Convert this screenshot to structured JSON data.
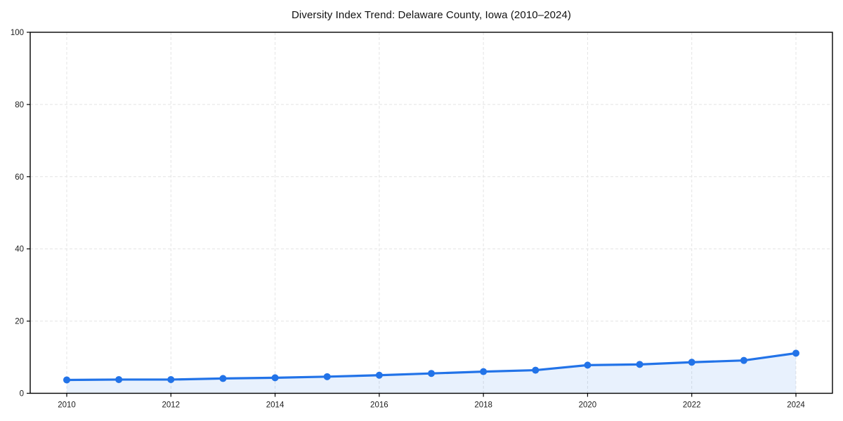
{
  "chart_data": {
    "type": "line",
    "title": "Diversity Index Trend: Delaware County, Iowa (2010–2024)",
    "xlabel": "",
    "ylabel": "",
    "x": [
      2010,
      2011,
      2012,
      2013,
      2014,
      2015,
      2016,
      2017,
      2018,
      2019,
      2020,
      2021,
      2022,
      2023,
      2024
    ],
    "series": [
      {
        "name": "Diversity Index",
        "values": [
          3.7,
          3.8,
          3.8,
          4.1,
          4.3,
          4.6,
          5.0,
          5.5,
          6.0,
          6.4,
          7.8,
          8.0,
          8.6,
          9.1,
          11.1
        ]
      }
    ],
    "ylim": [
      0,
      100
    ],
    "yticks": [
      0,
      20,
      40,
      60,
      80,
      100
    ],
    "xticks": [
      2010,
      2012,
      2014,
      2016,
      2018,
      2020,
      2022,
      2024
    ],
    "grid": true,
    "grid_style": "dashed",
    "legend": false,
    "marker": "circle",
    "area_filled": true,
    "colors": {
      "line": "#2273e8",
      "marker": "#2273e8",
      "area_fill": "rgba(34,115,232,0.10)",
      "grid": "#e4e4e4",
      "axis": "#000000",
      "tick_text": "#1c1c1c",
      "title_text": "#111111",
      "background": "#ffffff"
    }
  }
}
